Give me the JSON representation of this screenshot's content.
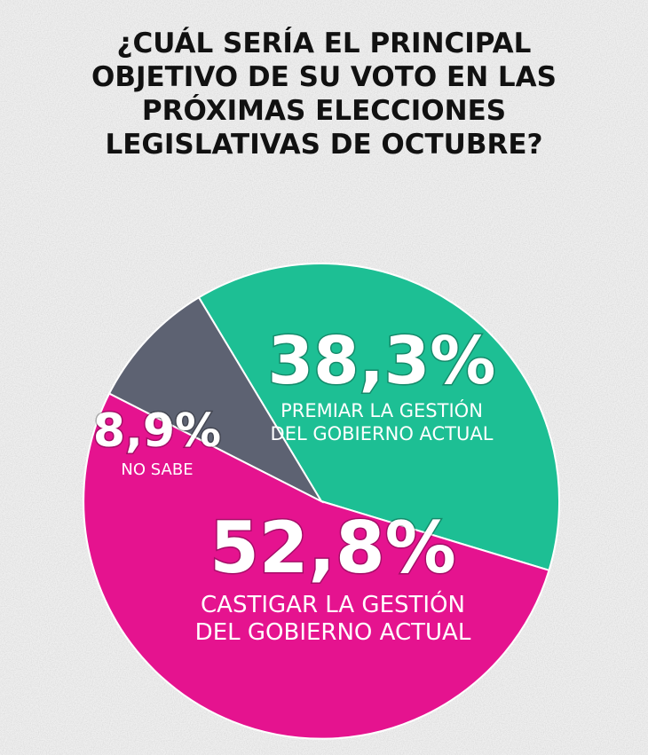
{
  "title": "¿CUÁL SERÍA EL PRINCIPAL\nOBJETIVO DE SU VOTO EN LAS\nPRÓXIMAS ELECCIONES\nLEGISLATIVAS DE OCTUBRE?",
  "chart_data": {
    "type": "pie",
    "title": "¿CUÁL SERÍA EL PRINCIPAL OBJETIVO DE SU VOTO EN LAS PRÓXIMAS ELECCIONES LEGISLATIVAS DE OCTUBRE?",
    "slices": [
      {
        "value": 38.3,
        "value_label": "38,3%",
        "label_lines": [
          "PREMIAR LA GESTIÓN",
          "DEL GOBIERNO ACTUAL"
        ],
        "color": "#1dbf94"
      },
      {
        "value": 52.8,
        "value_label": "52,8%",
        "label_lines": [
          "CASTIGAR LA GESTIÓN",
          "DEL GOBIERNO ACTUAL"
        ],
        "color": "#e5138f"
      },
      {
        "value": 8.9,
        "value_label": "8,9%",
        "label_lines": [
          "NO SABE"
        ],
        "color": "#5d6272"
      }
    ]
  }
}
